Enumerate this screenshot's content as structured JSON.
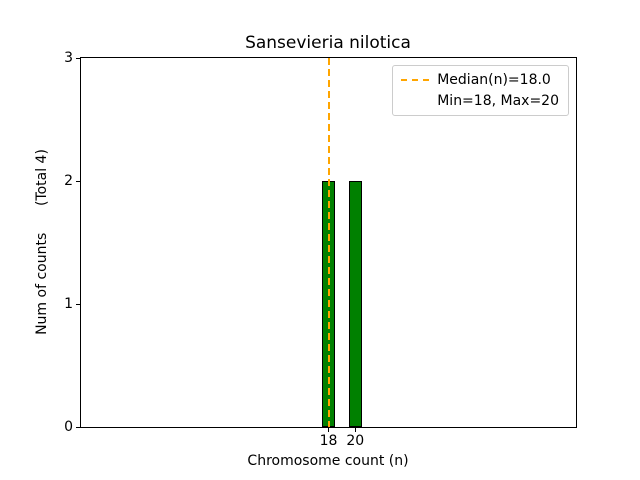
{
  "chart_data": {
    "type": "bar",
    "title": "Sansevieria nilotica",
    "xlabel": "Chromosome count (n)",
    "ylabel": "Num of counts      (Total 4)",
    "categories": [
      18,
      20
    ],
    "values": [
      2,
      2
    ],
    "total_counts": 4,
    "median": 18.0,
    "min": 18,
    "max": 20,
    "xlim": [
      -0.5,
      36.5
    ],
    "ylim": [
      0,
      3
    ],
    "xticks": [
      18,
      20
    ],
    "yticks": [
      0,
      1,
      2,
      3
    ],
    "bar_width": 1.0,
    "bar_color": "#008000",
    "bar_edge_color": "#000000",
    "median_line_color": "#FFA500",
    "grid": false,
    "legend": {
      "position": "upper right",
      "items": [
        "Median(n)=18.0",
        "Min=18, Max=20"
      ]
    }
  }
}
